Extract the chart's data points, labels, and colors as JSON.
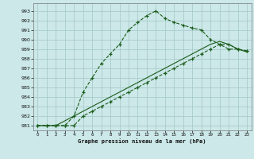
{
  "title": "Graphe pression niveau de la mer (hPa)",
  "background_color": "#cce8e8",
  "grid_color": "#aacccc",
  "line_color": "#1a5c1a",
  "hours": [
    0,
    1,
    2,
    3,
    4,
    5,
    6,
    7,
    8,
    9,
    10,
    11,
    12,
    13,
    14,
    15,
    16,
    17,
    18,
    19,
    20,
    21,
    22,
    23
  ],
  "curve1": [
    981.0,
    981.0,
    981.0,
    981.0,
    982.0,
    984.5,
    986.0,
    987.5,
    988.5,
    989.5,
    991.0,
    991.8,
    992.5,
    993.0,
    992.2,
    991.8,
    991.5,
    991.2,
    991.0,
    990.0,
    989.5,
    989.0,
    989.0,
    988.8
  ],
  "curve2": [
    981.0,
    981.0,
    981.0,
    981.0,
    981.0,
    982.0,
    982.5,
    983.0,
    983.5,
    984.0,
    984.5,
    985.0,
    985.5,
    986.0,
    986.5,
    987.0,
    987.5,
    988.0,
    988.5,
    989.0,
    989.5,
    989.5,
    989.0,
    988.8
  ],
  "curve3": [
    981.0,
    981.0,
    981.0,
    981.5,
    982.0,
    982.5,
    983.0,
    983.5,
    984.0,
    984.5,
    985.0,
    985.5,
    986.0,
    986.5,
    987.0,
    987.5,
    988.0,
    988.5,
    989.0,
    989.5,
    989.8,
    989.5,
    989.0,
    988.7
  ],
  "ylim": [
    980.5,
    993.8
  ],
  "yticks": [
    981,
    982,
    983,
    984,
    985,
    986,
    987,
    988,
    989,
    990,
    991,
    992,
    993
  ],
  "xlim": [
    -0.5,
    23.5
  ],
  "xticks": [
    0,
    1,
    2,
    3,
    4,
    5,
    6,
    7,
    8,
    9,
    10,
    11,
    12,
    13,
    14,
    15,
    16,
    17,
    18,
    19,
    20,
    21,
    22,
    23
  ]
}
